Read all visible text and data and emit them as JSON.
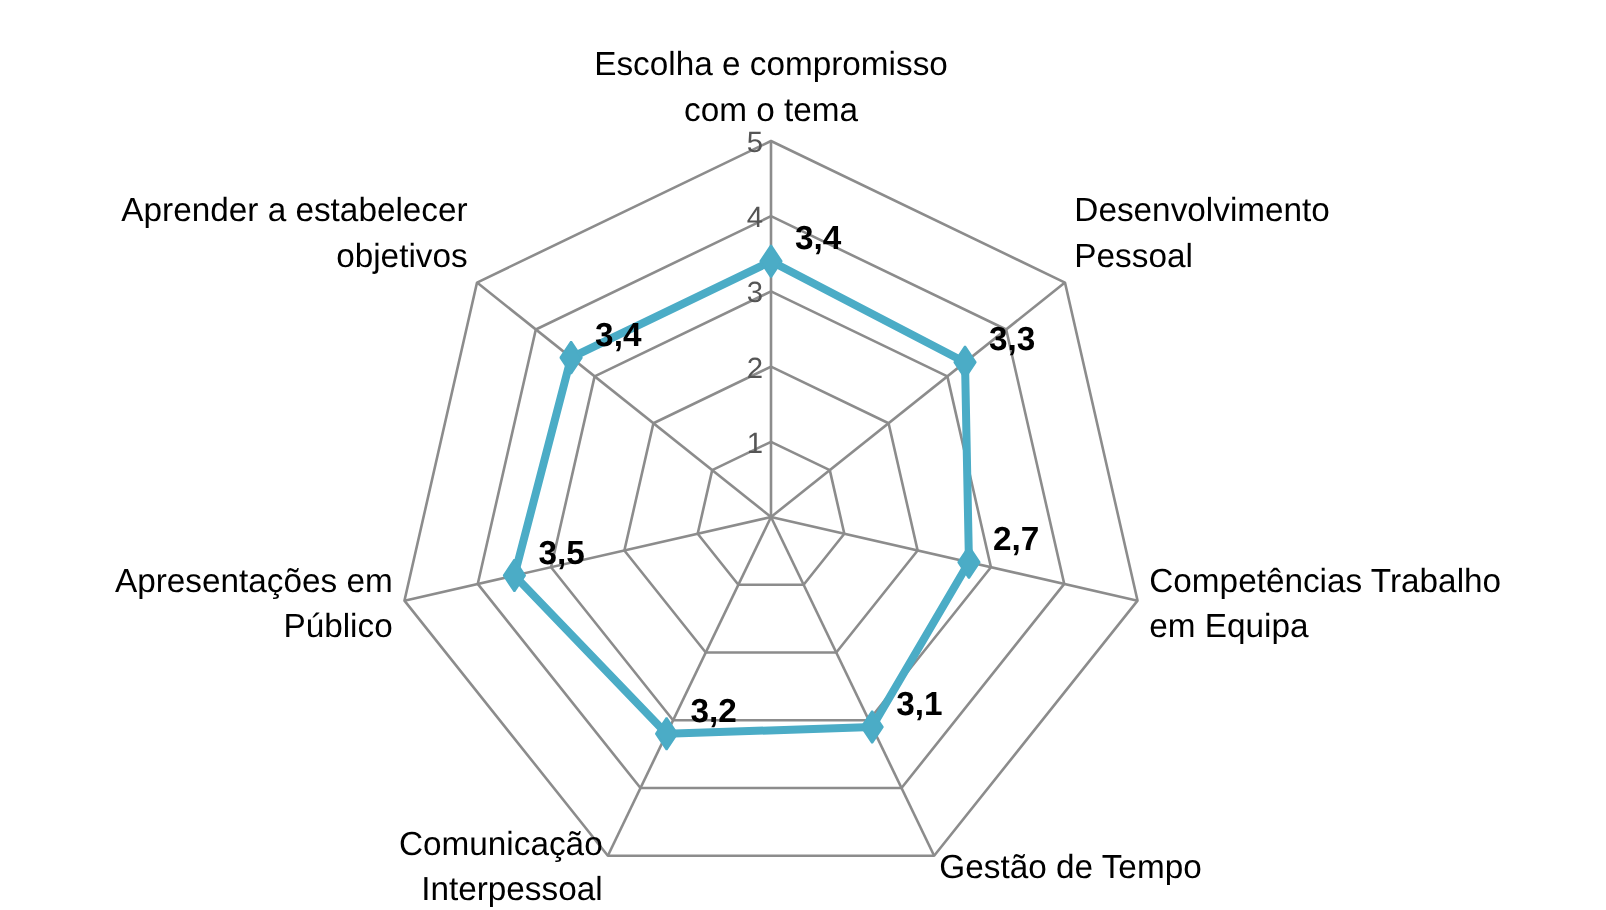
{
  "chart_data": {
    "type": "radar",
    "categories": [
      "Escolha e compromisso com o tema",
      "Desenvolvimento Pessoal",
      "Competências Trabalho em Equipa",
      "Gestão de Tempo",
      "Comunicação Interpessoal",
      "Apresentações em Público",
      "Aprender a estabelecer objetivos"
    ],
    "series": [
      {
        "color": "#4bacc6",
        "values": [
          3.4,
          3.3,
          2.7,
          3.1,
          3.2,
          3.5,
          3.4
        ],
        "value_labels": [
          "3,4",
          "3,3",
          "2,7",
          "3,1",
          "3,2",
          "3,5",
          "3,4"
        ]
      }
    ],
    "ylim": [
      0,
      5
    ],
    "yticks": [
      1,
      2,
      3,
      4,
      5
    ],
    "grid": true,
    "marker": "diamond",
    "line_style": "solid"
  }
}
